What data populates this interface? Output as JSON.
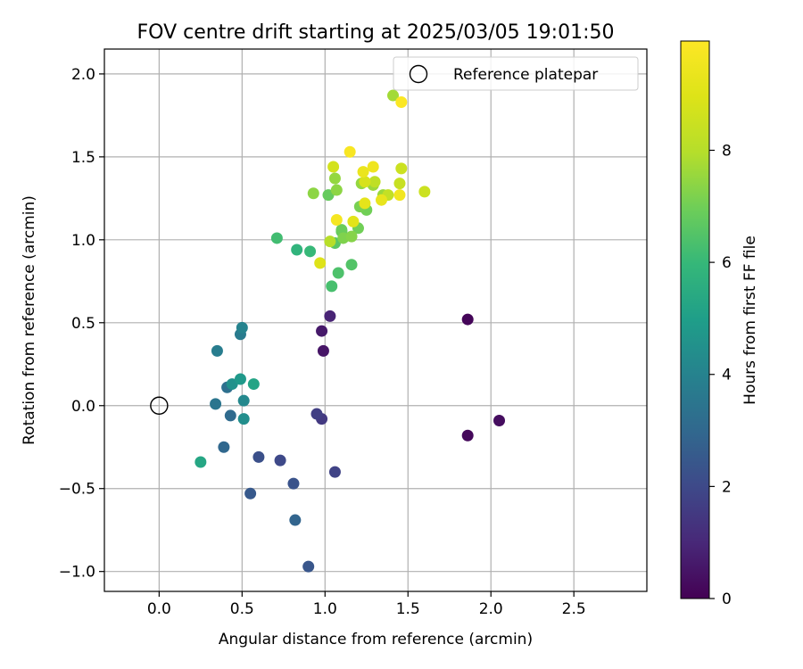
{
  "chart_data": {
    "type": "scatter",
    "title": "FOV centre drift starting at 2025/03/05 19:01:50",
    "xlabel": "Angular distance from reference (arcmin)",
    "ylabel": "Rotation from reference (arcmin)",
    "xlim": [
      -0.33,
      2.94
    ],
    "ylim": [
      -1.12,
      2.15
    ],
    "xticks": [
      0.0,
      0.5,
      1.0,
      1.5,
      2.0,
      2.5
    ],
    "xtick_labels": [
      "0.0",
      "0.5",
      "1.0",
      "1.5",
      "2.0",
      "2.5"
    ],
    "yticks": [
      -1.0,
      -0.5,
      0.0,
      0.5,
      1.0,
      1.5,
      2.0
    ],
    "ytick_labels": [
      "−1.0",
      "−0.5",
      "0.0",
      "0.5",
      "1.0",
      "1.5",
      "2.0"
    ],
    "grid": true,
    "legend": {
      "placement": "top-right",
      "entries": [
        "Reference platepar"
      ]
    },
    "reference_point": {
      "name": "Reference platepar",
      "x": 0.0,
      "y": 0.0
    },
    "colorbar": {
      "label": "Hours from first FF file",
      "colormap": "viridis",
      "range": [
        0,
        9.95
      ],
      "ticks": [
        0,
        2,
        4,
        6,
        8
      ],
      "tick_labels": [
        "0",
        "2",
        "4",
        "6",
        "8"
      ]
    },
    "points": [
      {
        "x": 1.86,
        "y": 0.52,
        "c": 0.1
      },
      {
        "x": 1.86,
        "y": -0.18,
        "c": 0.2
      },
      {
        "x": 2.05,
        "y": -0.09,
        "c": 0.3
      },
      {
        "x": 0.99,
        "y": 0.33,
        "c": 0.5
      },
      {
        "x": 0.98,
        "y": 0.45,
        "c": 0.6
      },
      {
        "x": 1.03,
        "y": 0.54,
        "c": 0.9
      },
      {
        "x": 0.98,
        "y": -0.08,
        "c": 1.5
      },
      {
        "x": 0.95,
        "y": -0.05,
        "c": 1.7
      },
      {
        "x": 1.06,
        "y": -0.4,
        "c": 1.8
      },
      {
        "x": 0.73,
        "y": -0.33,
        "c": 2.0
      },
      {
        "x": 0.6,
        "y": -0.31,
        "c": 2.2
      },
      {
        "x": 0.81,
        "y": -0.47,
        "c": 2.3
      },
      {
        "x": 0.9,
        "y": -0.97,
        "c": 2.4
      },
      {
        "x": 0.55,
        "y": -0.53,
        "c": 2.5
      },
      {
        "x": 0.82,
        "y": -0.69,
        "c": 2.9
      },
      {
        "x": 0.39,
        "y": -0.25,
        "c": 3.0
      },
      {
        "x": 0.43,
        "y": -0.06,
        "c": 3.1
      },
      {
        "x": 0.41,
        "y": 0.11,
        "c": 3.3
      },
      {
        "x": 0.34,
        "y": 0.01,
        "c": 3.5
      },
      {
        "x": 0.49,
        "y": 0.43,
        "c": 3.7
      },
      {
        "x": 0.35,
        "y": 0.33,
        "c": 3.8
      },
      {
        "x": 0.5,
        "y": 0.47,
        "c": 4.0
      },
      {
        "x": 0.51,
        "y": 0.03,
        "c": 4.2
      },
      {
        "x": 0.51,
        "y": -0.08,
        "c": 4.4
      },
      {
        "x": 0.44,
        "y": 0.13,
        "c": 4.5
      },
      {
        "x": 0.49,
        "y": 0.16,
        "c": 4.8
      },
      {
        "x": 0.57,
        "y": 0.13,
        "c": 5.2
      },
      {
        "x": 0.25,
        "y": -0.34,
        "c": 5.3
      },
      {
        "x": 0.83,
        "y": 0.94,
        "c": 5.8
      },
      {
        "x": 0.91,
        "y": 0.93,
        "c": 6.0
      },
      {
        "x": 0.71,
        "y": 1.01,
        "c": 6.2
      },
      {
        "x": 1.04,
        "y": 0.72,
        "c": 6.3
      },
      {
        "x": 1.08,
        "y": 0.8,
        "c": 6.4
      },
      {
        "x": 1.16,
        "y": 0.85,
        "c": 6.5
      },
      {
        "x": 1.06,
        "y": 0.98,
        "c": 6.6
      },
      {
        "x": 1.1,
        "y": 1.05,
        "c": 6.7
      },
      {
        "x": 1.02,
        "y": 1.27,
        "c": 6.8
      },
      {
        "x": 1.1,
        "y": 1.06,
        "c": 6.9
      },
      {
        "x": 1.2,
        "y": 1.07,
        "c": 7.0
      },
      {
        "x": 1.25,
        "y": 1.18,
        "c": 7.0
      },
      {
        "x": 1.21,
        "y": 1.2,
        "c": 7.1
      },
      {
        "x": 1.11,
        "y": 1.01,
        "c": 7.2
      },
      {
        "x": 1.16,
        "y": 1.02,
        "c": 7.3
      },
      {
        "x": 0.93,
        "y": 1.28,
        "c": 7.4
      },
      {
        "x": 1.07,
        "y": 1.3,
        "c": 7.4
      },
      {
        "x": 1.06,
        "y": 1.37,
        "c": 7.5
      },
      {
        "x": 1.22,
        "y": 1.34,
        "c": 7.5
      },
      {
        "x": 1.29,
        "y": 1.33,
        "c": 7.6
      },
      {
        "x": 1.35,
        "y": 1.27,
        "c": 7.6
      },
      {
        "x": 1.41,
        "y": 1.87,
        "c": 7.7
      },
      {
        "x": 1.03,
        "y": 0.99,
        "c": 8.0
      },
      {
        "x": 1.3,
        "y": 1.35,
        "c": 8.2
      },
      {
        "x": 1.38,
        "y": 1.27,
        "c": 8.3
      },
      {
        "x": 1.45,
        "y": 1.34,
        "c": 8.4
      },
      {
        "x": 1.46,
        "y": 1.43,
        "c": 8.5
      },
      {
        "x": 1.6,
        "y": 1.29,
        "c": 8.5
      },
      {
        "x": 1.05,
        "y": 1.44,
        "c": 8.7
      },
      {
        "x": 1.24,
        "y": 1.35,
        "c": 8.8
      },
      {
        "x": 0.97,
        "y": 0.86,
        "c": 9.0
      },
      {
        "x": 1.17,
        "y": 1.11,
        "c": 9.1
      },
      {
        "x": 1.24,
        "y": 1.22,
        "c": 9.2
      },
      {
        "x": 1.34,
        "y": 1.24,
        "c": 9.3
      },
      {
        "x": 1.23,
        "y": 1.41,
        "c": 9.4
      },
      {
        "x": 1.29,
        "y": 1.44,
        "c": 9.5
      },
      {
        "x": 1.45,
        "y": 1.27,
        "c": 9.6
      },
      {
        "x": 1.07,
        "y": 1.12,
        "c": 9.7
      },
      {
        "x": 1.15,
        "y": 1.53,
        "c": 9.8
      },
      {
        "x": 1.46,
        "y": 1.83,
        "c": 9.9
      }
    ]
  }
}
